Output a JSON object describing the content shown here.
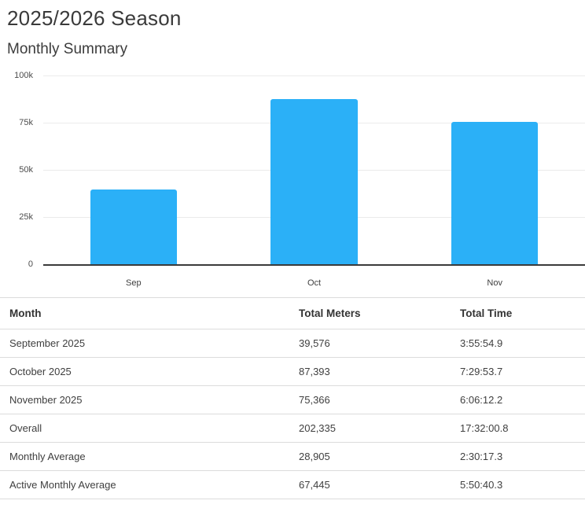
{
  "page": {
    "title": "2025/2026 Season",
    "subtitle": "Monthly Summary"
  },
  "chart_data": {
    "type": "bar",
    "title": "Monthly Summary",
    "categories": [
      "Sep",
      "Oct",
      "Nov"
    ],
    "values": [
      39576,
      87393,
      75366
    ],
    "xlabel": "",
    "ylabel": "",
    "ylim": [
      0,
      100000
    ],
    "y_ticks": [
      "100k",
      "75k",
      "50k",
      "25k",
      "0"
    ],
    "grid": "horizontal",
    "legend": "none",
    "bar_color": "#2BB0F7",
    "axis_color": "#3a3a3a"
  },
  "table": {
    "headers": [
      "Month",
      "Total Meters",
      "Total Time"
    ],
    "rows": [
      {
        "month": "September 2025",
        "meters": "39,576",
        "time": "3:55:54.9"
      },
      {
        "month": "October 2025",
        "meters": "87,393",
        "time": "7:29:53.7"
      },
      {
        "month": "November 2025",
        "meters": "75,366",
        "time": "6:06:12.2"
      },
      {
        "month": "Overall",
        "meters": "202,335",
        "time": "17:32:00.8"
      },
      {
        "month": "Monthly Average",
        "meters": "28,905",
        "time": "2:30:17.3"
      },
      {
        "month": "Active Monthly Average",
        "meters": "67,445",
        "time": "5:50:40.3"
      }
    ]
  }
}
